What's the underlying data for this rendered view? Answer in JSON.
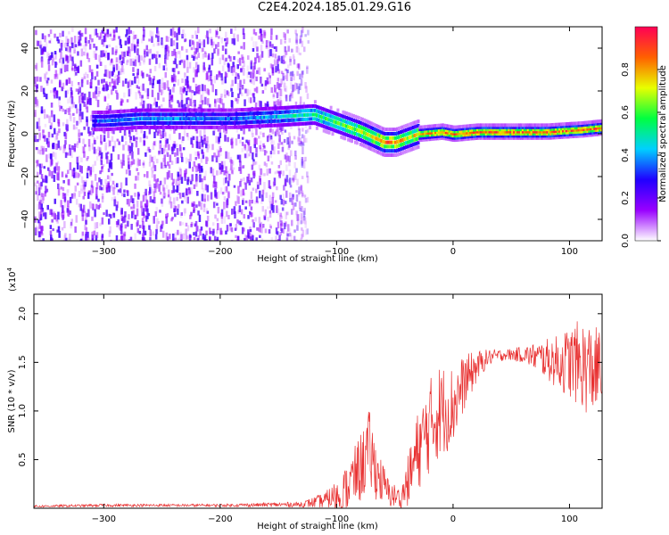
{
  "title": "C2E4.2024.185.01.29.G16",
  "chart_data": [
    {
      "type": "heatmap",
      "xlabel": "Height of straight line (km)",
      "ylabel": "Frequency (Hz)",
      "xlim": [
        -360,
        128
      ],
      "ylim": [
        -50,
        50
      ],
      "x_ticks": [
        -300,
        -200,
        -100,
        0,
        100
      ],
      "y_ticks": [
        -40,
        -20,
        0,
        20,
        40
      ],
      "colorbar": {
        "label": "Normalized spectral amplitude",
        "range": [
          0.0,
          1.0
        ],
        "ticks": [
          "0.0",
          "0.2",
          "0.4",
          "0.6",
          "0.8"
        ],
        "colormap": [
          "#ffffff",
          "#9900ff",
          "#2000ff",
          "#00d0ff",
          "#00ff40",
          "#e8ff00",
          "#ff6000",
          "#ff0055"
        ]
      },
      "noise_region_x": [
        -360,
        -125
      ],
      "signal_track": {
        "x": [
          -310,
          -300,
          -270,
          -245,
          -200,
          -190,
          -150,
          -120,
          -100,
          -80,
          -60,
          -50,
          -40,
          -30,
          -10,
          0,
          20,
          50,
          80,
          110,
          128
        ],
        "freq": [
          6,
          6,
          7,
          7,
          7,
          7,
          8,
          9,
          5,
          1,
          -4,
          -4,
          -2,
          0,
          1,
          0,
          1,
          1,
          1,
          2,
          3
        ],
        "amplitude": [
          0.35,
          0.35,
          0.4,
          0.4,
          0.35,
          0.35,
          0.45,
          0.55,
          0.6,
          0.7,
          0.85,
          0.85,
          0.7,
          0.8,
          0.85,
          0.9,
          0.9,
          0.9,
          0.9,
          0.9,
          0.9
        ]
      }
    },
    {
      "type": "line",
      "xlabel": "Height of straight line (km)",
      "ylabel": "SNR (10 * v/v)",
      "exponent_label": "(x10",
      "exponent_power": "4",
      "exponent_close": ")",
      "xlim": [
        -360,
        128
      ],
      "ylim": [
        0.0,
        2.2
      ],
      "x_ticks": [
        -300,
        -200,
        -100,
        0,
        100
      ],
      "y_ticks": [
        "0.5",
        "1.0",
        "1.5",
        "2.0"
      ],
      "line_color": "#e83030",
      "series": [
        {
          "x": [
            -360,
            -300,
            -200,
            -130,
            -110,
            -95,
            -80,
            -72,
            -65,
            -55,
            -45,
            -38,
            -30,
            -20,
            -12,
            0,
            10,
            20,
            30,
            45,
            60,
            75,
            90,
            105,
            115,
            128
          ],
          "y": [
            0.02,
            0.03,
            0.03,
            0.04,
            0.08,
            0.15,
            0.4,
            0.6,
            0.35,
            0.15,
            0.1,
            0.3,
            0.6,
            0.85,
            1.0,
            1.05,
            1.3,
            1.45,
            1.55,
            1.58,
            1.58,
            1.55,
            1.5,
            1.5,
            1.45,
            1.4
          ],
          "noise": [
            0.008,
            0.01,
            0.01,
            0.02,
            0.06,
            0.15,
            0.25,
            0.3,
            0.2,
            0.1,
            0.08,
            0.2,
            0.3,
            0.35,
            0.35,
            0.3,
            0.2,
            0.12,
            0.06,
            0.04,
            0.06,
            0.12,
            0.2,
            0.3,
            0.35,
            0.3
          ]
        }
      ]
    }
  ]
}
